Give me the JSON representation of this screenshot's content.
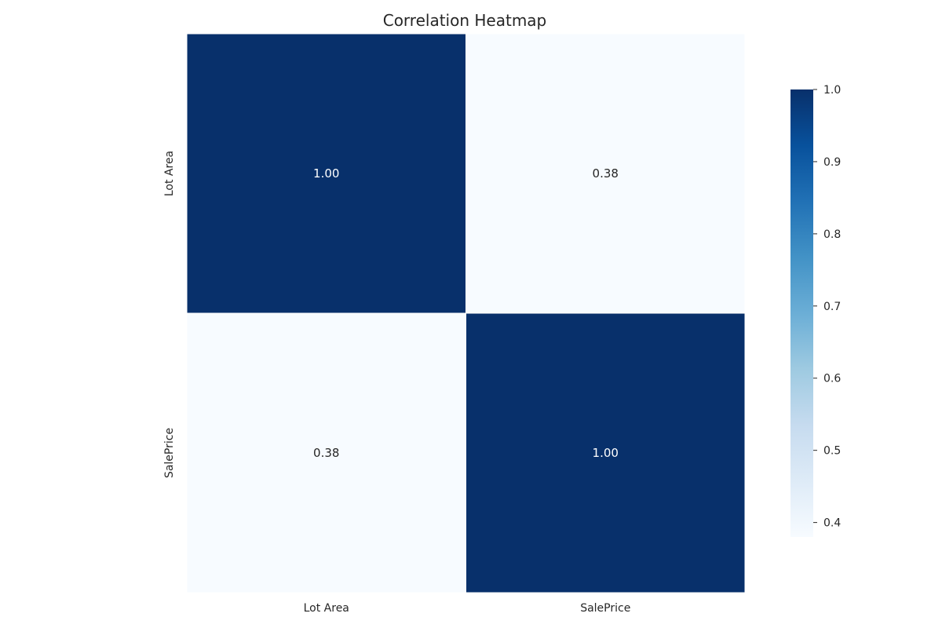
{
  "chart_data": {
    "type": "heatmap",
    "title": "Correlation Heatmap",
    "x_labels": [
      "Lot Area",
      "SalePrice"
    ],
    "y_labels": [
      "Lot Area",
      "SalePrice"
    ],
    "values": [
      [
        1.0,
        0.38
      ],
      [
        0.38,
        1.0
      ]
    ],
    "annotations": [
      [
        "1.00",
        "0.38"
      ],
      [
        "0.38",
        "1.00"
      ]
    ],
    "colormap": "Blues",
    "color_low": "#f7fbff",
    "color_high": "#08306b",
    "annotation_color_dark_cells": "#ffffff",
    "annotation_color_light_cells": "#262626",
    "cell_separator_color": "#ffffff",
    "colorbar": {
      "vmin": 0.38,
      "vmax": 1.0,
      "ticks": [
        "0.4",
        "0.5",
        "0.6",
        "0.7",
        "0.8",
        "0.9",
        "1.0"
      ]
    },
    "grid": false,
    "legend": "colorbar-right"
  }
}
